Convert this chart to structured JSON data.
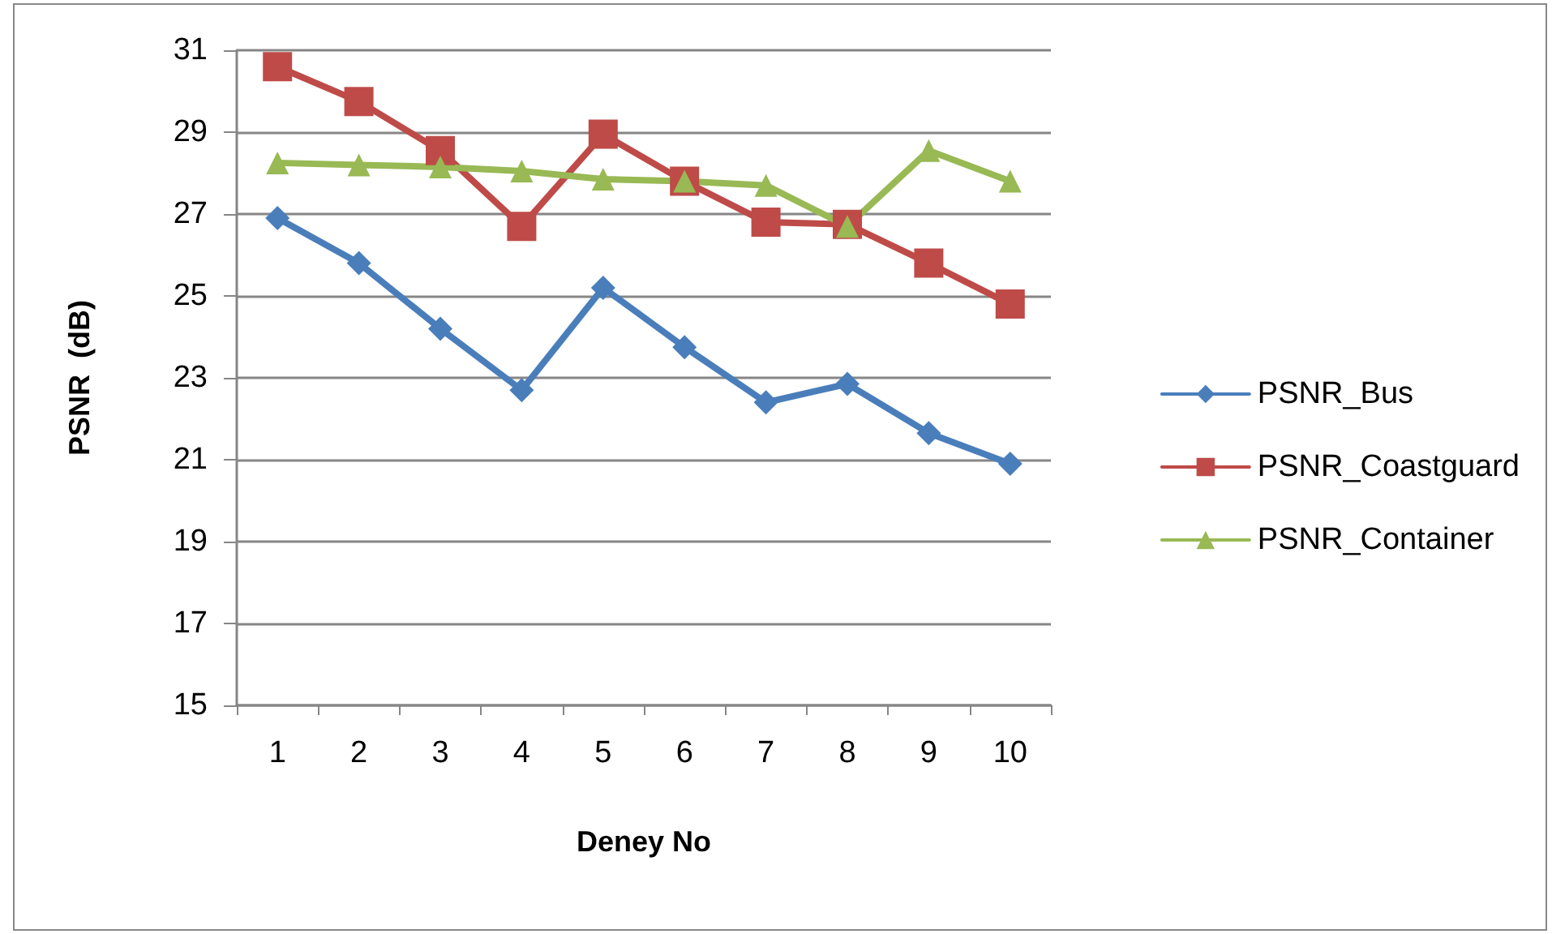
{
  "chart_data": {
    "type": "line",
    "xlabel": "Deney No",
    "ylabel": "PSNR  (dB)",
    "categories": [
      "1",
      "2",
      "3",
      "4",
      "5",
      "6",
      "7",
      "8",
      "9",
      "10"
    ],
    "series": [
      {
        "name": "PSNR_Bus",
        "color": "#4a7ebb",
        "marker": "diamond",
        "values": [
          26.9,
          25.8,
          24.2,
          22.7,
          25.2,
          23.75,
          22.4,
          22.85,
          21.65,
          20.9
        ]
      },
      {
        "name": "PSNR_Coastguard",
        "color": "#be4b48",
        "marker": "square",
        "values": [
          30.6,
          29.75,
          28.55,
          26.7,
          28.95,
          27.8,
          26.8,
          26.75,
          25.8,
          24.8
        ]
      },
      {
        "name": "PSNR_Container",
        "color": "#98b954",
        "marker": "triangle",
        "values": [
          28.25,
          28.2,
          28.15,
          28.05,
          27.85,
          27.8,
          27.7,
          26.7,
          28.55,
          27.8
        ]
      }
    ],
    "ylim": [
      15,
      31
    ],
    "yticks": [
      15,
      17,
      19,
      21,
      23,
      25,
      27,
      29,
      31
    ],
    "grid": "y",
    "legend": "right",
    "line_style": "solid"
  }
}
